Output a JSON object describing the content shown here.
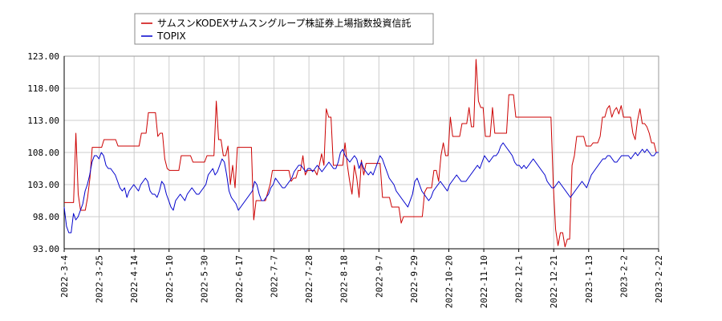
{
  "chart_data": {
    "type": "line",
    "title": "",
    "xlabel": "",
    "ylabel": "",
    "ylim": [
      93.0,
      123.0
    ],
    "y_ticks": [
      "123.00",
      "118.00",
      "113.00",
      "108.00",
      "103.00",
      "98.00",
      "93.00"
    ],
    "x_ticks": [
      "2022-3-4",
      "2022-3-25",
      "2022-4-14",
      "2022-5-10",
      "2022-5-30",
      "2022-6-17",
      "2022-7-7",
      "2022-7-28",
      "2022-8-18",
      "2022-9-7",
      "2022-9-29",
      "2022-10-20",
      "2022-11-10",
      "2022-12-1",
      "2022-12-21",
      "2023-1-13",
      "2023-2-2",
      "2023-2-22"
    ],
    "grid": true,
    "legend_position": "top-left",
    "colors": {
      "series1": "#cc0000",
      "series2": "#0000cc",
      "grid": "#cccccc",
      "axis": "#000000"
    },
    "series": [
      {
        "name": "サムスンKODEXサムスングループ株証券上場指数投資信託",
        "values": [
          100.2,
          100.2,
          100.2,
          100.2,
          100.2,
          111.0,
          101.5,
          99.0,
          99.0,
          99.0,
          101.0,
          104.0,
          108.8,
          108.8,
          108.8,
          108.8,
          108.8,
          110.0,
          110.0,
          110.0,
          110.0,
          110.0,
          110.0,
          109.0,
          109.0,
          109.0,
          109.0,
          109.0,
          109.0,
          109.0,
          109.0,
          109.0,
          109.0,
          111.0,
          111.0,
          111.0,
          114.2,
          114.2,
          114.2,
          114.2,
          110.5,
          111.0,
          111.0,
          107.0,
          105.5,
          105.2,
          105.2,
          105.2,
          105.2,
          105.2,
          107.5,
          107.5,
          107.5,
          107.5,
          107.5,
          106.5,
          106.5,
          106.5,
          106.5,
          106.5,
          106.5,
          107.5,
          107.5,
          107.5,
          107.5,
          116.0,
          110.0,
          110.0,
          107.5,
          107.5,
          109.0,
          103.0,
          106.0,
          102.5,
          108.8,
          108.8,
          108.8,
          108.8,
          108.8,
          108.8,
          108.8,
          97.5,
          100.5,
          100.5,
          100.5,
          100.5,
          100.5,
          101.8,
          103.0,
          105.2,
          105.2,
          105.2,
          105.2,
          105.2,
          105.2,
          105.2,
          105.2,
          103.5,
          104.0,
          104.0,
          105.2,
          105.2,
          107.5,
          104.5,
          105.2,
          105.2,
          105.2,
          105.2,
          104.5,
          106.0,
          107.8,
          106.0,
          114.8,
          113.5,
          113.5,
          106.0,
          106.0,
          106.0,
          106.0,
          106.0,
          109.5,
          106.0,
          103.5,
          101.5,
          106.0,
          104.0,
          101.0,
          106.8,
          104.5,
          106.3,
          106.3,
          106.3,
          106.3,
          106.3,
          106.3,
          106.3,
          101.0,
          101.0,
          101.0,
          101.0,
          99.5,
          99.5,
          99.5,
          99.5,
          97.0,
          98.0,
          98.0,
          98.0,
          98.0,
          98.0,
          98.0,
          98.0,
          98.0,
          98.0,
          101.8,
          102.5,
          102.5,
          102.5,
          105.2,
          105.2,
          103.5,
          107.5,
          109.5,
          107.5,
          107.5,
          113.5,
          110.5,
          110.5,
          110.5,
          110.5,
          112.5,
          112.5,
          112.5,
          115.0,
          112.0,
          112.0,
          122.5,
          116.0,
          115.0,
          115.0,
          110.5,
          110.5,
          110.5,
          115.0,
          111.0,
          111.0,
          111.0,
          111.0,
          111.0,
          111.0,
          117.0,
          117.0,
          117.0,
          113.5,
          113.5,
          113.5,
          113.5,
          113.5,
          113.5,
          113.5,
          113.5,
          113.5,
          113.5,
          113.5,
          113.5,
          113.5,
          113.5,
          113.5,
          113.5,
          103.0,
          96.0,
          93.5,
          95.5,
          95.5,
          93.3,
          94.5,
          94.5,
          106.0,
          107.5,
          110.5,
          110.5,
          110.5,
          110.5,
          109.0,
          109.0,
          109.0,
          109.5,
          109.5,
          109.5,
          110.5,
          113.5,
          113.5,
          114.8,
          115.3,
          113.5,
          114.5,
          115.0,
          114.0,
          115.3,
          113.5,
          113.5,
          113.5,
          113.5,
          111.0,
          110.0,
          113.0,
          114.8,
          112.5,
          112.5,
          112.0,
          111.0,
          109.5,
          109.5,
          108.0,
          108.0
        ]
      },
      {
        "name": "TOPIX",
        "values": [
          99.5,
          96.5,
          95.5,
          95.5,
          98.5,
          97.5,
          98.0,
          99.0,
          100.0,
          102.0,
          103.0,
          104.5,
          106.5,
          107.5,
          107.5,
          107.0,
          108.0,
          107.5,
          106.0,
          105.5,
          105.5,
          105.0,
          104.5,
          103.5,
          102.5,
          102.0,
          102.5,
          101.0,
          102.0,
          102.5,
          103.0,
          102.5,
          102.0,
          103.0,
          103.5,
          104.0,
          103.5,
          102.0,
          101.5,
          101.5,
          101.0,
          102.0,
          103.5,
          103.0,
          101.5,
          100.5,
          99.5,
          99.0,
          100.5,
          101.0,
          101.5,
          101.0,
          100.5,
          101.5,
          102.0,
          102.5,
          102.0,
          101.5,
          101.5,
          102.0,
          102.5,
          103.0,
          104.5,
          105.0,
          105.5,
          104.5,
          105.0,
          106.0,
          107.0,
          106.5,
          104.5,
          102.0,
          101.0,
          100.5,
          100.0,
          99.0,
          99.5,
          100.0,
          100.5,
          101.0,
          101.5,
          102.0,
          103.5,
          103.0,
          101.5,
          100.5,
          100.5,
          101.0,
          101.5,
          102.5,
          103.0,
          104.0,
          103.5,
          103.0,
          102.5,
          102.5,
          103.0,
          103.5,
          104.0,
          105.0,
          105.5,
          106.0,
          106.0,
          105.5,
          105.0,
          105.5,
          105.5,
          105.0,
          105.5,
          106.0,
          105.5,
          105.0,
          105.5,
          106.0,
          106.5,
          106.0,
          105.5,
          105.5,
          106.5,
          108.0,
          108.5,
          107.5,
          107.0,
          106.5,
          107.0,
          107.5,
          107.0,
          105.5,
          106.5,
          105.5,
          105.0,
          104.5,
          105.0,
          104.5,
          105.5,
          106.5,
          107.5,
          107.0,
          106.0,
          105.0,
          104.0,
          103.5,
          103.0,
          102.0,
          101.5,
          101.0,
          100.5,
          100.0,
          99.5,
          100.5,
          101.5,
          103.5,
          104.0,
          103.0,
          102.0,
          101.5,
          101.0,
          100.5,
          101.0,
          102.0,
          102.5,
          103.0,
          103.5,
          103.0,
          102.5,
          102.0,
          103.0,
          103.5,
          104.0,
          104.5,
          104.0,
          103.5,
          103.5,
          103.5,
          104.0,
          104.5,
          105.0,
          105.5,
          106.0,
          105.5,
          106.5,
          107.5,
          107.0,
          106.5,
          107.0,
          107.5,
          107.5,
          108.0,
          109.0,
          109.5,
          109.0,
          108.5,
          108.0,
          107.5,
          106.5,
          106.0,
          106.0,
          105.5,
          106.0,
          105.5,
          106.0,
          106.5,
          107.0,
          106.5,
          106.0,
          105.5,
          105.0,
          104.5,
          103.5,
          103.0,
          102.5,
          102.5,
          103.0,
          103.5,
          103.0,
          102.5,
          102.0,
          101.5,
          101.0,
          101.5,
          102.0,
          102.5,
          103.0,
          103.5,
          103.0,
          102.5,
          103.5,
          104.5,
          105.0,
          105.5,
          106.0,
          106.5,
          107.0,
          107.0,
          107.5,
          107.5,
          107.0,
          106.5,
          106.5,
          107.0,
          107.5,
          107.5,
          107.5,
          107.5,
          107.0,
          107.5,
          108.0,
          107.5,
          108.0,
          108.5,
          108.0,
          108.5,
          108.0,
          107.5,
          107.5,
          108.0,
          108.0
        ]
      }
    ]
  }
}
